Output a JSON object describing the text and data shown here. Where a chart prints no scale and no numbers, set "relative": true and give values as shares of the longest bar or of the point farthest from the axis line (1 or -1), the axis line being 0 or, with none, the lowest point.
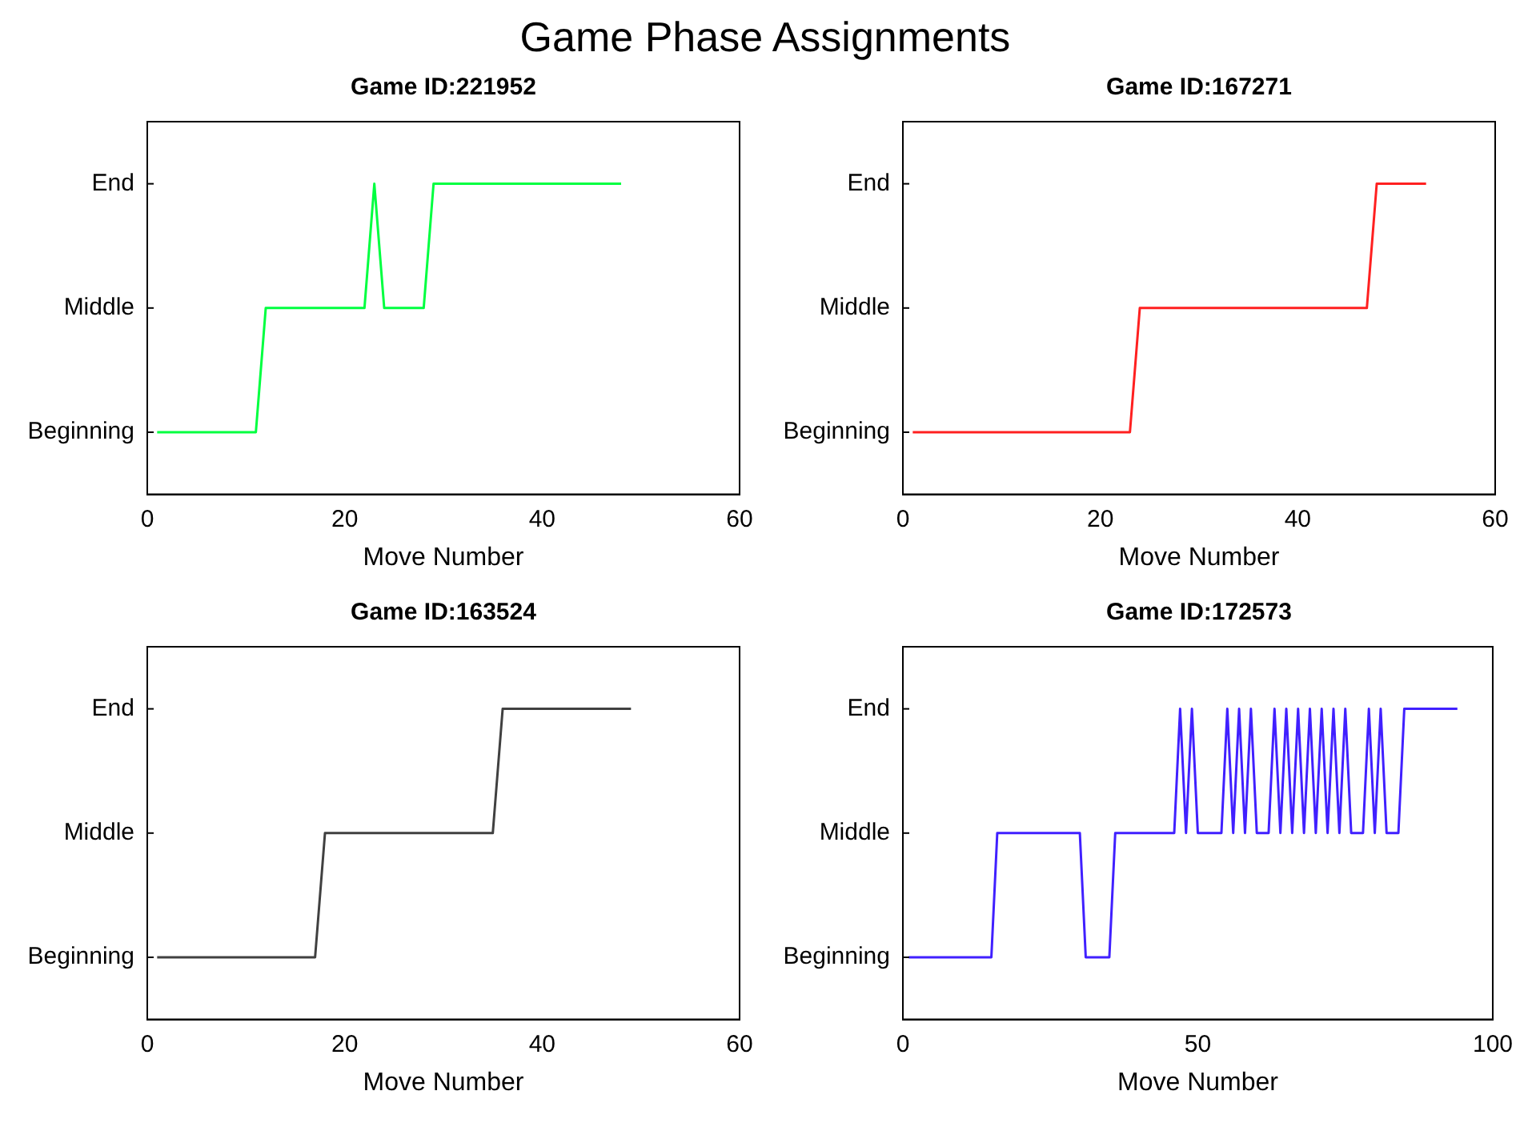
{
  "chart_data": [
    {
      "type": "line",
      "title": "Game ID:221952",
      "xlabel": "Move Number",
      "annotations": [
        "Game Phase Assignments",
        "Beginning",
        "Middle",
        "End"
      ],
      "marker": "none",
      "line_style": "solid",
      "grid": false,
      "legend": false,
      "relative": true,
      "xlim": [
        0,
        60
      ],
      "xticks": [
        0,
        20,
        40,
        60
      ],
      "series": [
        {
          "color": "#00ff40",
          "x": [
            1,
            11,
            12,
            22,
            23,
            24,
            28,
            29,
            48
          ],
          "values": [
            0.2,
            0.2,
            0.6,
            0.6,
            1,
            0.6,
            0.6,
            1,
            1
          ]
        }
      ]
    },
    {
      "type": "line",
      "title": "Game ID:167271",
      "xlabel": "Move Number",
      "annotations": [
        "Beginning",
        "Middle",
        "End"
      ],
      "marker": "none",
      "line_style": "solid",
      "grid": false,
      "legend": false,
      "relative": true,
      "xlim": [
        0,
        60
      ],
      "xticks": [
        0,
        20,
        40,
        60
      ],
      "series": [
        {
          "color": "#ff2020",
          "x": [
            1,
            23,
            24,
            47,
            48,
            53
          ],
          "values": [
            0.2,
            0.2,
            0.6,
            0.6,
            1,
            1
          ]
        }
      ]
    },
    {
      "type": "line",
      "title": "Game ID:163524",
      "xlabel": "Move Number",
      "annotations": [
        "Beginning",
        "Middle",
        "End"
      ],
      "marker": "none",
      "line_style": "solid",
      "grid": false,
      "legend": false,
      "relative": true,
      "xlim": [
        0,
        60
      ],
      "xticks": [
        0,
        20,
        40,
        60
      ],
      "series": [
        {
          "color": "#404040",
          "x": [
            1,
            17,
            18,
            35,
            36,
            49
          ],
          "values": [
            0.2,
            0.2,
            0.6,
            0.6,
            1,
            1
          ]
        }
      ]
    },
    {
      "type": "line",
      "title": "Game ID:172573",
      "xlabel": "Move Number",
      "annotations": [
        "Beginning",
        "Middle",
        "End"
      ],
      "marker": "none",
      "line_style": "solid",
      "grid": false,
      "legend": false,
      "relative": true,
      "xlim": [
        0,
        100
      ],
      "xticks": [
        0,
        50,
        100
      ],
      "series": [
        {
          "color": "#4020ff",
          "x": [
            1,
            15,
            16,
            30,
            31,
            35,
            36,
            46,
            47,
            48,
            49,
            50,
            54,
            55,
            56,
            57,
            58,
            59,
            60,
            62,
            63,
            64,
            65,
            66,
            67,
            68,
            69,
            70,
            71,
            72,
            73,
            74,
            75,
            76,
            78,
            79,
            80,
            81,
            82,
            84,
            85,
            94
          ],
          "values": [
            0.2,
            0.2,
            0.6,
            0.6,
            0.2,
            0.2,
            0.6,
            0.6,
            1,
            0.6,
            1,
            0.6,
            0.6,
            1,
            0.6,
            1,
            0.6,
            1,
            0.6,
            0.6,
            1,
            0.6,
            1,
            0.6,
            1,
            0.6,
            1,
            0.6,
            1,
            0.6,
            1,
            0.6,
            1,
            0.6,
            0.6,
            1,
            0.6,
            1,
            0.6,
            0.6,
            1,
            1
          ]
        }
      ]
    }
  ]
}
